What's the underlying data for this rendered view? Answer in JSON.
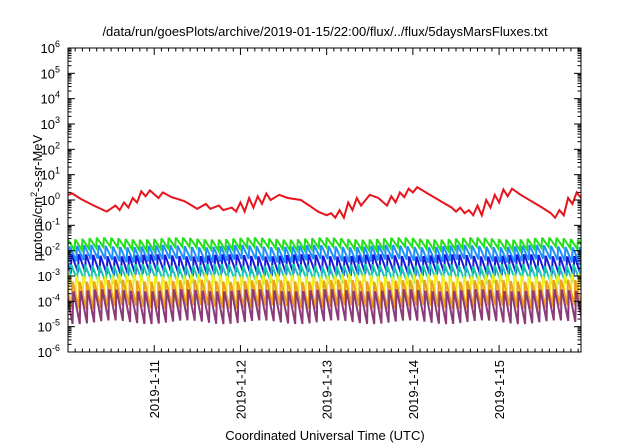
{
  "chart_data": {
    "type": "line",
    "title": "/data/run/goesPlots/archive/2019-01-15/22:00/flux/../flux/5daysMarsFluxes.txt",
    "xlabel": "Coordinated Universal Time (UTC)",
    "ylabel": {
      "prefix": "protons/cm",
      "sup": "2",
      "suffix": "-s-sr-MeV"
    },
    "yscale": "log",
    "ylim_exp": [
      -6,
      6
    ],
    "y_ticks": [
      {
        "base": "10",
        "exp": "-6"
      },
      {
        "base": "10",
        "exp": "-5"
      },
      {
        "base": "10",
        "exp": "-4"
      },
      {
        "base": "10",
        "exp": "-3"
      },
      {
        "base": "10",
        "exp": "-2"
      },
      {
        "base": "10",
        "exp": "-1"
      },
      {
        "base": "10",
        "exp": "0"
      },
      {
        "base": "10",
        "exp": "1"
      },
      {
        "base": "10",
        "exp": "2"
      },
      {
        "base": "10",
        "exp": "3"
      },
      {
        "base": "10",
        "exp": "4"
      },
      {
        "base": "10",
        "exp": "5"
      },
      {
        "base": "10",
        "exp": "6"
      }
    ],
    "xlim_days": [
      10.0,
      15.95
    ],
    "x_ticks": [
      {
        "label": "2019-1-11",
        "day": 11
      },
      {
        "label": "2019-1-12",
        "day": 12
      },
      {
        "label": "2019-1-13",
        "day": 13
      },
      {
        "label": "2019-1-14",
        "day": 14
      },
      {
        "label": "2019-1-15",
        "day": 15
      }
    ],
    "grid": false,
    "series": [
      {
        "color": "#e8141c",
        "kind": "anchors",
        "points": [
          [
            10.0,
            1.6
          ],
          [
            10.05,
            1.8
          ],
          [
            10.15,
            1.1
          ],
          [
            10.3,
            0.6
          ],
          [
            10.45,
            0.35
          ],
          [
            10.55,
            0.6
          ],
          [
            10.6,
            0.4
          ],
          [
            10.65,
            0.8
          ],
          [
            10.7,
            0.5
          ],
          [
            10.75,
            1.2
          ],
          [
            10.8,
            0.8
          ],
          [
            10.85,
            2.2
          ],
          [
            10.9,
            1.4
          ],
          [
            10.95,
            2.4
          ],
          [
            11.05,
            1.2
          ],
          [
            11.1,
            2.0
          ],
          [
            11.2,
            1.3
          ],
          [
            11.35,
            0.9
          ],
          [
            11.5,
            0.45
          ],
          [
            11.6,
            0.7
          ],
          [
            11.65,
            0.45
          ],
          [
            11.75,
            0.6
          ],
          [
            11.8,
            0.4
          ],
          [
            11.9,
            0.5
          ],
          [
            11.95,
            0.35
          ],
          [
            12.0,
            0.8
          ],
          [
            12.05,
            0.35
          ],
          [
            12.1,
            1.2
          ],
          [
            12.15,
            0.5
          ],
          [
            12.2,
            1.4
          ],
          [
            12.25,
            0.7
          ],
          [
            12.3,
            1.8
          ],
          [
            12.35,
            1.0
          ],
          [
            12.45,
            1.6
          ],
          [
            12.55,
            1.2
          ],
          [
            12.7,
            1.0
          ],
          [
            12.8,
            0.6
          ],
          [
            12.9,
            0.35
          ],
          [
            13.0,
            0.25
          ],
          [
            13.05,
            0.3
          ],
          [
            13.1,
            0.2
          ],
          [
            13.15,
            0.4
          ],
          [
            13.2,
            0.2
          ],
          [
            13.25,
            0.8
          ],
          [
            13.3,
            0.4
          ],
          [
            13.35,
            1.2
          ],
          [
            13.4,
            0.6
          ],
          [
            13.5,
            1.6
          ],
          [
            13.6,
            1.2
          ],
          [
            13.7,
            0.6
          ],
          [
            13.75,
            1.4
          ],
          [
            13.8,
            0.8
          ],
          [
            13.85,
            2.0
          ],
          [
            13.9,
            1.3
          ],
          [
            13.95,
            2.8
          ],
          [
            14.0,
            2.0
          ],
          [
            14.05,
            3.2
          ],
          [
            14.15,
            2.0
          ],
          [
            14.3,
            1.0
          ],
          [
            14.45,
            0.5
          ],
          [
            14.5,
            0.35
          ],
          [
            14.55,
            0.5
          ],
          [
            14.6,
            0.3
          ],
          [
            14.65,
            0.4
          ],
          [
            14.7,
            0.25
          ],
          [
            14.75,
            0.6
          ],
          [
            14.8,
            0.25
          ],
          [
            14.85,
            1.0
          ],
          [
            14.9,
            0.5
          ],
          [
            14.95,
            1.6
          ],
          [
            15.0,
            0.8
          ],
          [
            15.05,
            2.6
          ],
          [
            15.1,
            1.4
          ],
          [
            15.15,
            2.8
          ],
          [
            15.25,
            1.6
          ],
          [
            15.4,
            0.8
          ],
          [
            15.5,
            0.5
          ],
          [
            15.6,
            0.3
          ],
          [
            15.65,
            0.2
          ],
          [
            15.7,
            0.4
          ],
          [
            15.75,
            0.25
          ],
          [
            15.8,
            1.2
          ],
          [
            15.85,
            0.7
          ],
          [
            15.9,
            2.0
          ],
          [
            15.95,
            1.2
          ]
        ]
      },
      {
        "color": "#22e01a",
        "kind": "sawtooth",
        "period": 0.0833,
        "phase": 0.0,
        "high": 0.028,
        "low": 0.012
      },
      {
        "color": "#1e90ff",
        "kind": "sawtooth",
        "period": 0.0833,
        "phase": 0.02,
        "high": 0.014,
        "low": 0.004
      },
      {
        "color": "#1a1adc",
        "kind": "sawtooth",
        "period": 0.0833,
        "phase": 0.04,
        "high": 0.006,
        "low": 0.0012
      },
      {
        "color": "#18c8b0",
        "kind": "sawtooth",
        "period": 0.0833,
        "phase": 0.03,
        "high": 0.0025,
        "low": 0.0006
      },
      {
        "color": "#f0f020",
        "kind": "sawtooth",
        "period": 0.0833,
        "phase": 0.01,
        "high": 0.001,
        "low": 0.00012
      },
      {
        "color": "#f0a020",
        "kind": "sawtooth",
        "period": 0.0833,
        "phase": 0.05,
        "high": 0.0006,
        "low": 6e-05
      },
      {
        "color": "#8c3a78",
        "kind": "sawtooth",
        "period": 0.0833,
        "phase": 0.06,
        "high": 0.00025,
        "low": 1.5e-05
      }
    ]
  }
}
